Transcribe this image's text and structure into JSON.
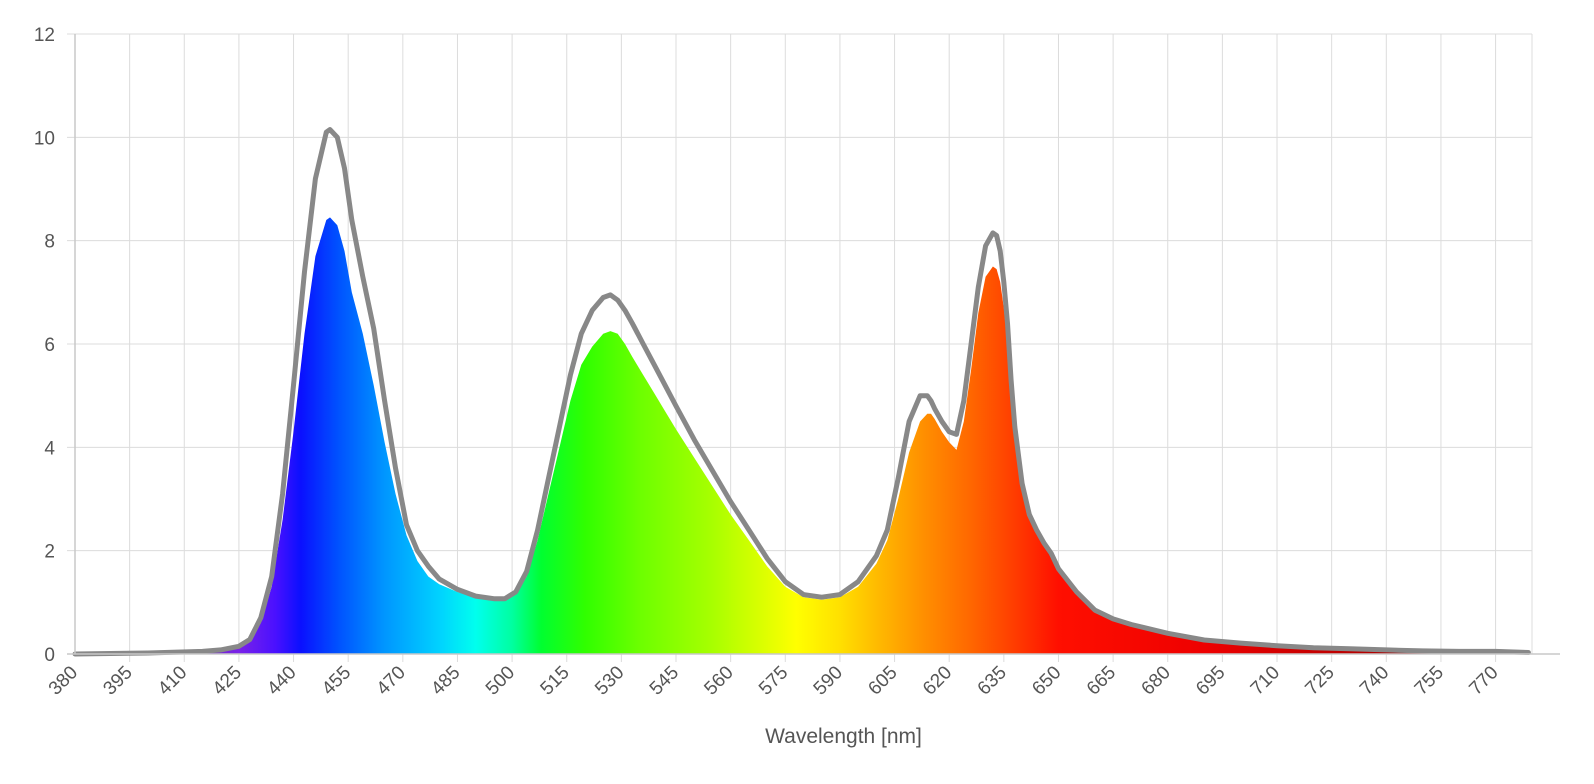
{
  "chart_data": {
    "type": "area",
    "title": "",
    "xlabel": "Wavelength [nm]",
    "ylabel": "",
    "xlim": [
      380,
      780
    ],
    "ylim": [
      0,
      12
    ],
    "grid": true,
    "x_ticks": [
      380,
      395,
      410,
      425,
      440,
      455,
      470,
      485,
      500,
      515,
      530,
      545,
      560,
      575,
      590,
      605,
      620,
      635,
      650,
      665,
      680,
      695,
      710,
      725,
      740,
      755,
      770
    ],
    "x_tick_labels": [
      "380",
      "395",
      "410",
      "425",
      "440",
      "455",
      "470",
      "485",
      "500",
      "515",
      "530",
      "545",
      "560",
      "575",
      "590",
      "605",
      "620",
      "635",
      "650",
      "665",
      "680",
      "695",
      "710",
      "725",
      "740",
      "755",
      "770"
    ],
    "y_ticks": [
      0,
      2,
      4,
      6,
      8,
      10,
      12
    ],
    "y_tick_labels": [
      "0",
      "2",
      "4",
      "6",
      "8",
      "10",
      "12"
    ],
    "series": [
      {
        "kind": "spectral-fill",
        "x": [
          380,
          400,
          415,
          420,
          425,
          428,
          431,
          434,
          437,
          440,
          443,
          446,
          449,
          450,
          452,
          454,
          456,
          459,
          462,
          465,
          468,
          471,
          474,
          477,
          480,
          485,
          490,
          495,
          498,
          501,
          504,
          507,
          510,
          513,
          516,
          519,
          522,
          525,
          527,
          529,
          531,
          533,
          536,
          539,
          542,
          545,
          550,
          555,
          560,
          565,
          570,
          575,
          580,
          585,
          590,
          595,
          600,
          603,
          606,
          609,
          612,
          614,
          615,
          616,
          618,
          620,
          622,
          624,
          626,
          628,
          630,
          632,
          633,
          634,
          635,
          636,
          637,
          638,
          640,
          642,
          644,
          646,
          648,
          650,
          655,
          660,
          665,
          670,
          680,
          690,
          700,
          710,
          720,
          730,
          740,
          750,
          760,
          770,
          779
        ],
        "y": [
          0.0,
          0.02,
          0.05,
          0.08,
          0.15,
          0.28,
          0.6,
          1.3,
          2.6,
          4.3,
          6.2,
          7.7,
          8.4,
          8.45,
          8.3,
          7.8,
          7.0,
          6.2,
          5.2,
          4.1,
          3.1,
          2.3,
          1.8,
          1.5,
          1.35,
          1.2,
          1.1,
          1.05,
          1.05,
          1.15,
          1.5,
          2.2,
          3.1,
          4.0,
          4.9,
          5.6,
          5.95,
          6.2,
          6.25,
          6.2,
          6.0,
          5.75,
          5.4,
          5.05,
          4.7,
          4.35,
          3.8,
          3.25,
          2.7,
          2.2,
          1.7,
          1.3,
          1.1,
          1.05,
          1.1,
          1.3,
          1.75,
          2.2,
          3.0,
          3.9,
          4.5,
          4.65,
          4.65,
          4.55,
          4.3,
          4.1,
          3.95,
          4.5,
          5.5,
          6.6,
          7.3,
          7.5,
          7.45,
          7.2,
          6.7,
          6.0,
          5.0,
          4.2,
          3.2,
          2.65,
          2.35,
          2.1,
          1.9,
          1.6,
          1.15,
          0.8,
          0.65,
          0.55,
          0.38,
          0.26,
          0.2,
          0.15,
          0.12,
          0.1,
          0.08,
          0.06,
          0.05,
          0.05,
          0.03
        ]
      },
      {
        "kind": "outline",
        "color": "#888888",
        "x": [
          380,
          400,
          415,
          420,
          425,
          428,
          431,
          434,
          437,
          440,
          443,
          446,
          449,
          450,
          452,
          454,
          456,
          459,
          462,
          465,
          468,
          471,
          474,
          477,
          480,
          485,
          490,
          495,
          498,
          501,
          504,
          507,
          510,
          513,
          516,
          519,
          522,
          525,
          527,
          529,
          531,
          533,
          536,
          539,
          542,
          545,
          550,
          555,
          560,
          565,
          570,
          575,
          580,
          585,
          590,
          595,
          600,
          603,
          606,
          609,
          612,
          614,
          615,
          616,
          618,
          620,
          622,
          624,
          626,
          628,
          630,
          632,
          633,
          634,
          635,
          636,
          637,
          638,
          640,
          642,
          644,
          646,
          648,
          650,
          655,
          660,
          665,
          670,
          680,
          690,
          700,
          710,
          720,
          730,
          740,
          750,
          760,
          770,
          779
        ],
        "y": [
          0.0,
          0.02,
          0.05,
          0.08,
          0.15,
          0.28,
          0.7,
          1.5,
          3.1,
          5.2,
          7.4,
          9.2,
          10.1,
          10.15,
          10.0,
          9.4,
          8.4,
          7.3,
          6.3,
          4.9,
          3.6,
          2.5,
          2.0,
          1.7,
          1.45,
          1.25,
          1.12,
          1.07,
          1.07,
          1.2,
          1.6,
          2.4,
          3.4,
          4.4,
          5.4,
          6.2,
          6.65,
          6.9,
          6.95,
          6.85,
          6.65,
          6.4,
          6.0,
          5.6,
          5.2,
          4.8,
          4.15,
          3.55,
          2.95,
          2.4,
          1.85,
          1.4,
          1.15,
          1.1,
          1.15,
          1.4,
          1.9,
          2.4,
          3.4,
          4.5,
          5.0,
          5.0,
          4.9,
          4.75,
          4.5,
          4.3,
          4.25,
          4.9,
          6.0,
          7.1,
          7.9,
          8.15,
          8.1,
          7.8,
          7.2,
          6.4,
          5.3,
          4.4,
          3.3,
          2.7,
          2.4,
          2.15,
          1.95,
          1.65,
          1.2,
          0.85,
          0.68,
          0.57,
          0.4,
          0.27,
          0.21,
          0.16,
          0.12,
          0.1,
          0.08,
          0.06,
          0.05,
          0.05,
          0.03
        ]
      }
    ]
  }
}
